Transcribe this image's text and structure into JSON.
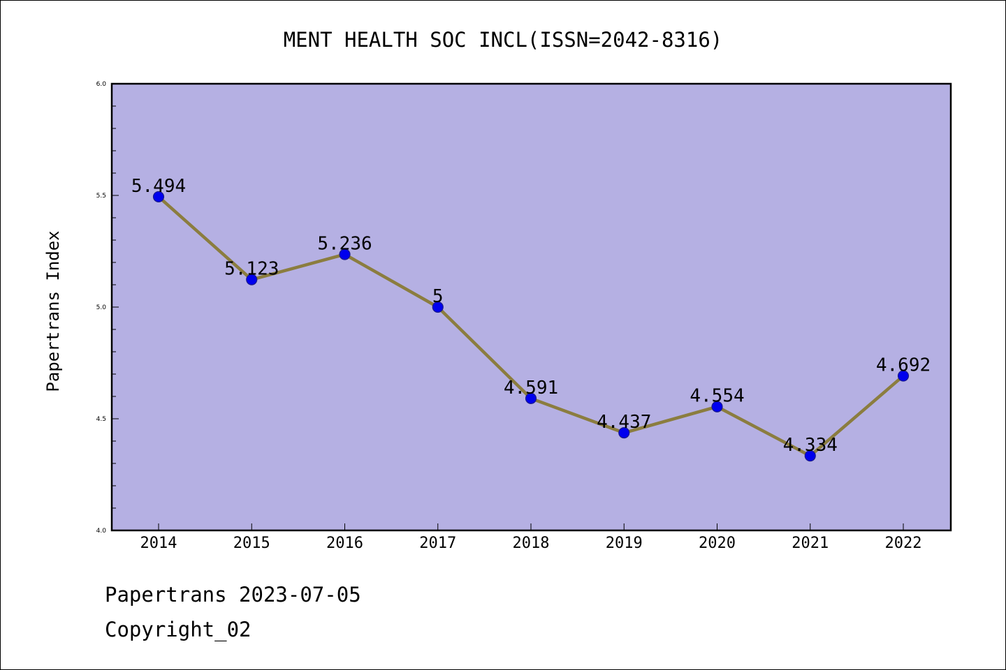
{
  "chart_data": {
    "type": "line",
    "title": "MENT HEALTH SOC INCL(ISSN=2042-8316)",
    "ylabel": "Papertrans Index",
    "xlabel": "",
    "categories": [
      "2014",
      "2015",
      "2016",
      "2017",
      "2018",
      "2019",
      "2020",
      "2021",
      "2022"
    ],
    "values": [
      5.494,
      5.123,
      5.236,
      5,
      4.591,
      4.437,
      4.554,
      4.334,
      4.692
    ],
    "data_labels": [
      "5.494",
      "5.123",
      "5.236",
      "5",
      "4.591",
      "4.437",
      "4.554",
      "4.334",
      "4.692"
    ],
    "ylim": [
      4.0,
      6.0
    ],
    "yticks": [
      "4.0",
      "4.5",
      "5.0",
      "5.5",
      "6.0"
    ],
    "grid": false,
    "legend": "none",
    "colors": {
      "plot_background": "#b5b0e3",
      "line": "#8b7d3f",
      "marker_fill": "#0000ee",
      "marker_edge": "#1a1a8a"
    }
  },
  "footer": {
    "line1": "Papertrans 2023-07-05",
    "line2": "Copyright_02"
  }
}
